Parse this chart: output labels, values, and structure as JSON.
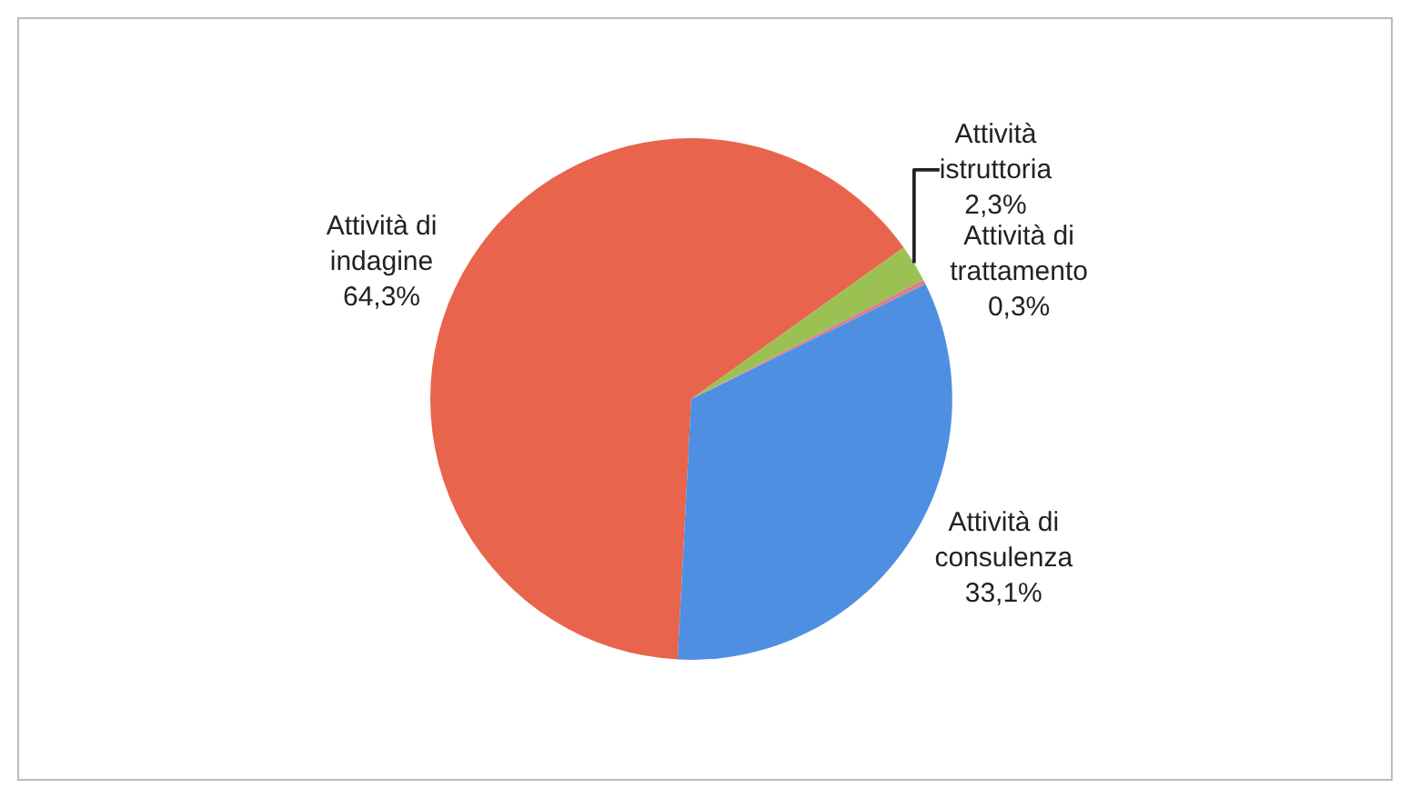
{
  "chart_data": {
    "type": "pie",
    "categories": [
      "Attività di indagine",
      "Attività istruttoria",
      "Attività di trattamento",
      "Attività di consulenza"
    ],
    "values": [
      64.3,
      2.3,
      0.3,
      33.1
    ],
    "value_labels": [
      "64,3%",
      "2,3%",
      "0,3%",
      "33,1%"
    ],
    "colors": [
      "#e8644c",
      "#9bc152",
      "#d9828a",
      "#4f8fe2"
    ],
    "legend": false
  }
}
